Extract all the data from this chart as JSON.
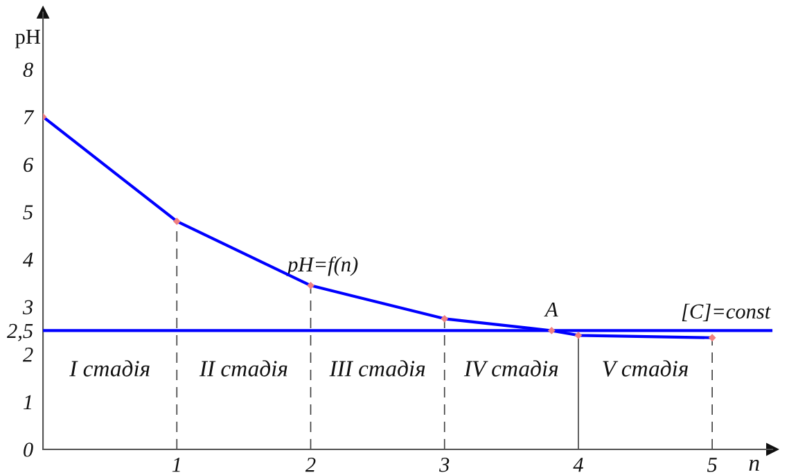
{
  "chart_data": {
    "type": "line",
    "xlabel": "n",
    "ylabel": "pH",
    "series": [
      {
        "name": "pH=f(n)",
        "color": "#0000ff",
        "colors": [
          "#f08080",
          "#f08080",
          "#f08080",
          "#f08080",
          "#f08080",
          "#f08080",
          "#f08080"
        ],
        "x": [
          0,
          1,
          2,
          3,
          3.8,
          4,
          5
        ],
        "values": [
          7,
          4.8,
          3.45,
          2.75,
          2.5,
          2.4,
          2.35
        ]
      }
    ],
    "marker": "diamond",
    "xlim": [
      0,
      5.45
    ],
    "xticks": [
      1,
      2,
      3,
      4,
      5
    ],
    "ylim": [
      0,
      9.2
    ],
    "yticks": [
      0,
      1,
      2,
      {
        "value": 2.5,
        "label": "2,5"
      },
      3,
      4,
      5,
      6,
      7,
      8
    ],
    "ref_lines": [
      {
        "axis": "y",
        "value": 2.5,
        "label": "[C]=const",
        "color": "#0000ff",
        "line_style": "solid"
      },
      {
        "axis": "x",
        "value": 1,
        "color": "#404040",
        "line_style": "dashed"
      },
      {
        "axis": "x",
        "value": 2,
        "color": "#404040",
        "line_style": "dashed"
      },
      {
        "axis": "x",
        "value": 3,
        "color": "#404040",
        "line_style": "dashed"
      },
      {
        "axis": "x",
        "value": 4,
        "color": "#404040",
        "line_style": "solid"
      },
      {
        "axis": "x",
        "value": 5,
        "color": "#404040",
        "line_style": "dashed"
      }
    ],
    "annotations": [
      {
        "text": "A",
        "x": 3.8,
        "y": 2.5
      },
      "I стадія",
      "II стадія",
      "III стадія",
      "IV стадія",
      "V стадія"
    ],
    "grid": false,
    "legend": false
  }
}
